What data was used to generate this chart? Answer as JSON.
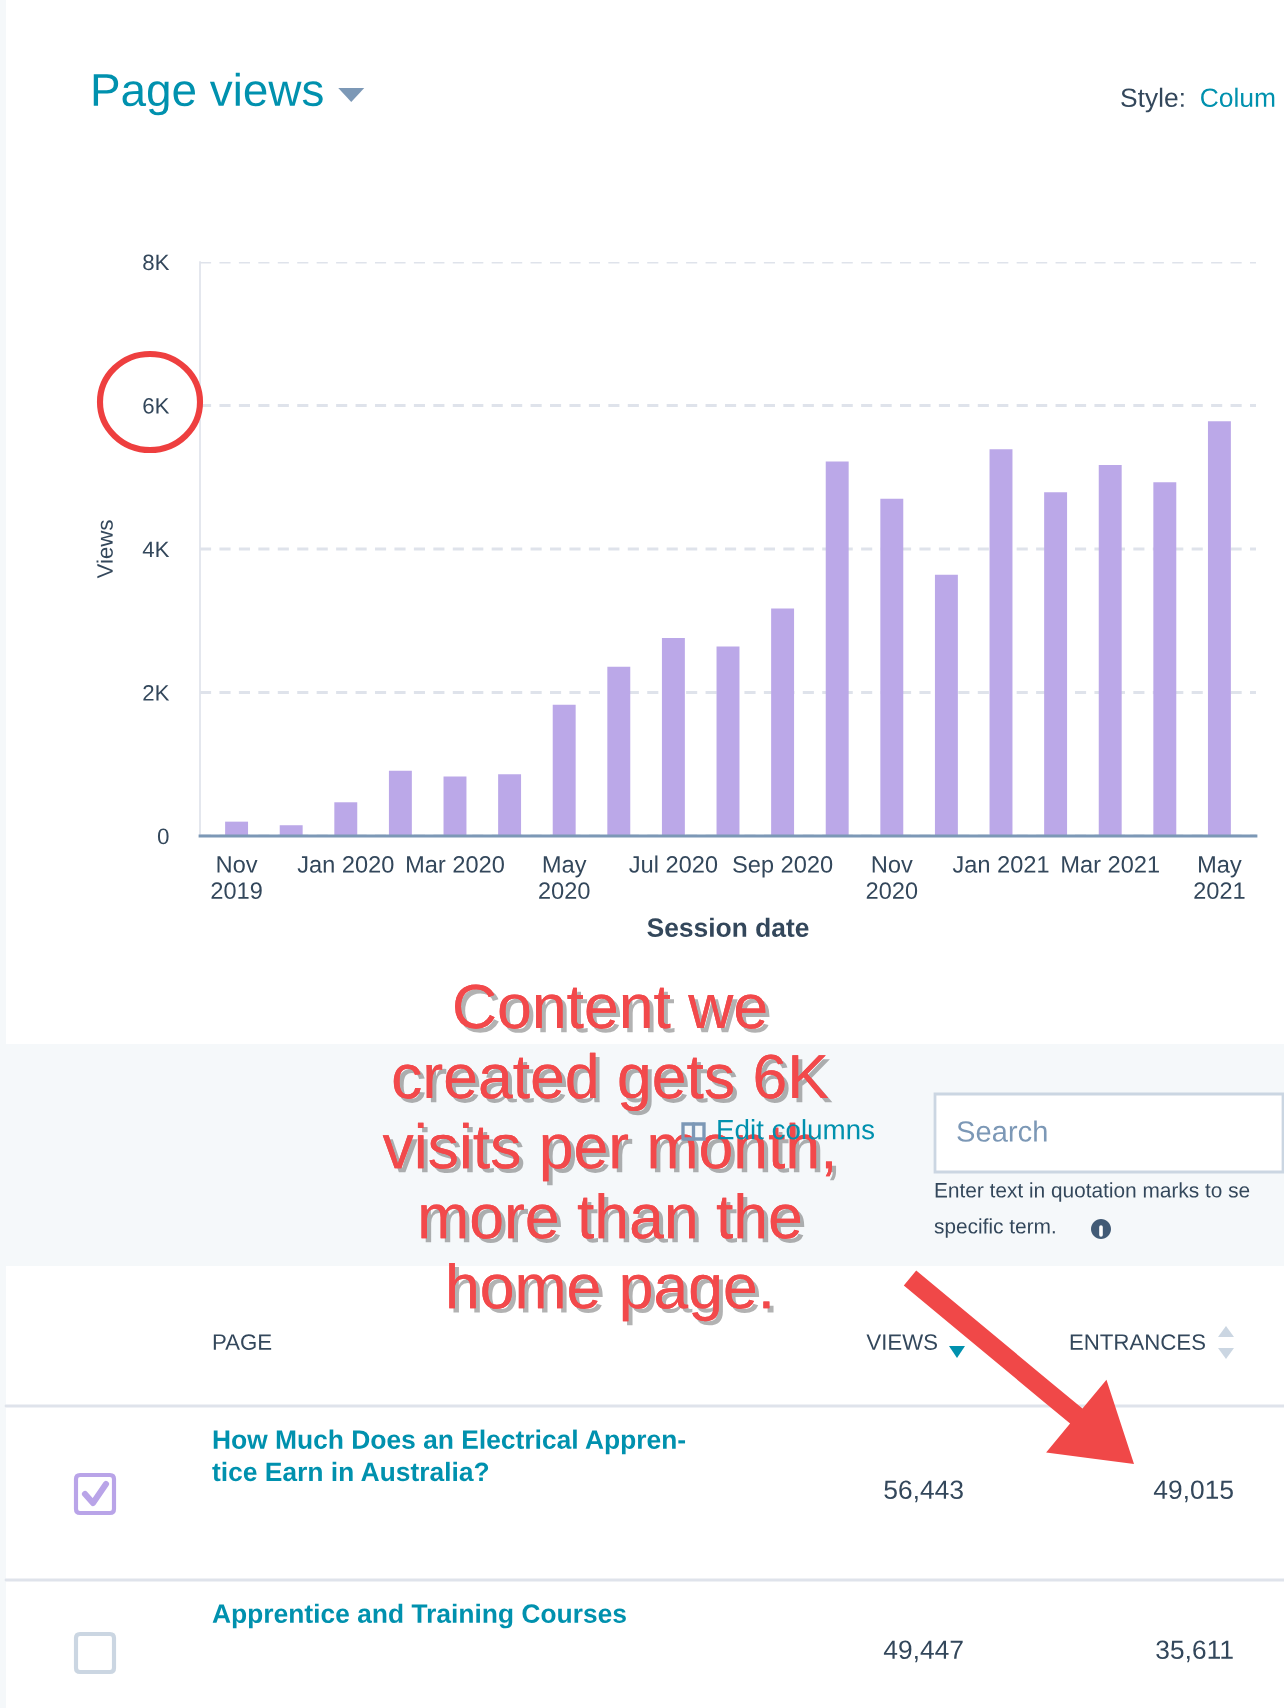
{
  "chart_data": [
    {
      "type": "bar",
      "title": "Page views",
      "xlabel": "Session date",
      "ylabel": "Views",
      "categories": [
        "Nov\n2019",
        null,
        "Jan 2020",
        null,
        "Mar 2020",
        null,
        "May\n2020",
        null,
        "Jul 2020",
        null,
        "Sep 2020",
        null,
        "Nov\n2020",
        null,
        "Jan 2021",
        null,
        "Mar 2021",
        null,
        "May\n2021"
      ],
      "values": [
        200,
        150,
        470,
        910,
        830,
        860,
        1830,
        2360,
        2760,
        2640,
        3170,
        5220,
        4700,
        3640,
        5390,
        4790,
        5170,
        4930,
        5780
      ],
      "color": "#bba8e8",
      "ylim": [
        0,
        8000
      ],
      "yticks": [
        0,
        {
          "value": 2000,
          "label": "2K"
        },
        {
          "value": 4000,
          "label": "4K"
        },
        {
          "value": 6000,
          "label": "6K"
        },
        {
          "value": 8000,
          "label": "8K"
        }
      ],
      "grid": "y",
      "annotations": [
        "Style:",
        "Colum",
        "Content we\ncreated gets 6K\nvisits per month,\nmore than the\nhome page."
      ]
    },
    {
      "type": "other",
      "annotations": [
        "Edit columns",
        "Search",
        "Enter text in quotation marks to se",
        "specific term.",
        "PAGE",
        "VIEWS",
        "ENTRANCES",
        "How Much Does an Electrical Appren-\ntice Earn in Australia?",
        "56,443",
        "49,015",
        "Apprentice and Training Courses",
        "49,447",
        "35,611"
      ]
    }
  ]
}
